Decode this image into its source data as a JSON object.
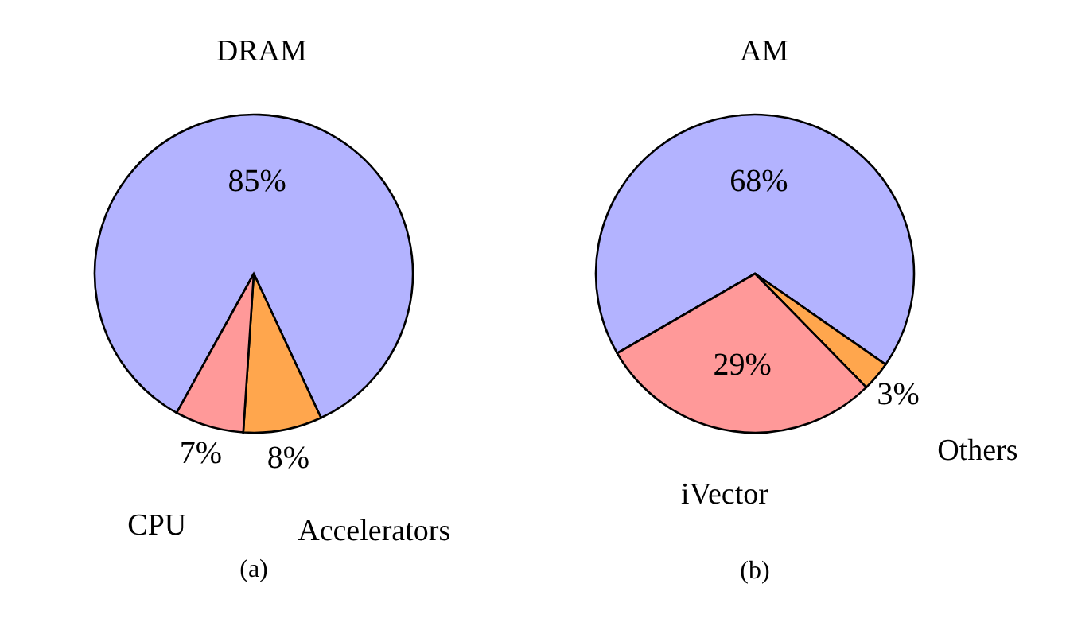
{
  "chart_data": [
    {
      "type": "pie",
      "categories": [
        "DRAM",
        "Accelerators",
        "CPU"
      ],
      "values": [
        85,
        8,
        7
      ],
      "value_labels": [
        "85%",
        "8%",
        "7%"
      ],
      "colors": [
        "#b3b3ff",
        "#ffa64d",
        "#ff9999"
      ],
      "annotations": [
        "(a)"
      ]
    },
    {
      "type": "pie",
      "categories": [
        "AM",
        "Others",
        "iVector"
      ],
      "values": [
        68,
        3,
        29
      ],
      "value_labels": [
        "68%",
        "3%",
        "29%"
      ],
      "colors": [
        "#b3b3ff",
        "#ffa64d",
        "#ff9999"
      ],
      "annotations": [
        "(b)"
      ]
    }
  ]
}
